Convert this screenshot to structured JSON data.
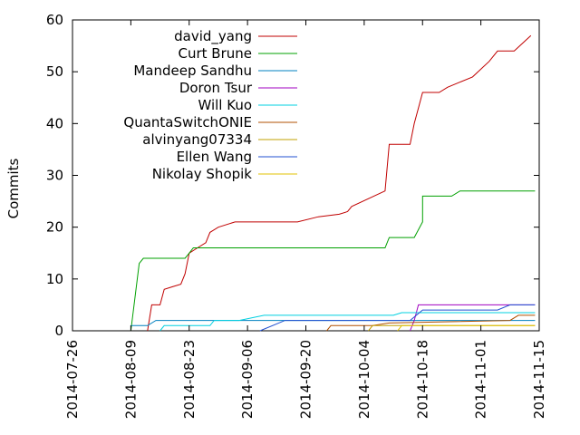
{
  "chart_data": {
    "type": "line",
    "title": "",
    "xlabel": "",
    "ylabel": "Commits",
    "ylim": [
      0,
      60
    ],
    "yticks": [
      0,
      10,
      20,
      30,
      40,
      50,
      60
    ],
    "xlim": [
      "2014-07-26",
      "2014-11-15"
    ],
    "xticks": [
      "2014-07-26",
      "2014-08-09",
      "2014-08-23",
      "2014-09-06",
      "2014-09-20",
      "2014-10-04",
      "2014-10-18",
      "2014-11-01",
      "2014-11-15"
    ],
    "grid": false,
    "legend_position": "top-left",
    "series": [
      {
        "name": "david_yang",
        "color": "#c00000",
        "points": [
          [
            "2014-08-13",
            0
          ],
          [
            "2014-08-14",
            5
          ],
          [
            "2014-08-16",
            5
          ],
          [
            "2014-08-17",
            8
          ],
          [
            "2014-08-19",
            8.5
          ],
          [
            "2014-08-21",
            9
          ],
          [
            "2014-08-22",
            11
          ],
          [
            "2014-08-23",
            15
          ],
          [
            "2014-08-25",
            16
          ],
          [
            "2014-08-27",
            17
          ],
          [
            "2014-08-28",
            19
          ],
          [
            "2014-08-30",
            20
          ],
          [
            "2014-09-03",
            21
          ],
          [
            "2014-09-12",
            21
          ],
          [
            "2014-09-18",
            21
          ],
          [
            "2014-09-23",
            22
          ],
          [
            "2014-09-28",
            22.5
          ],
          [
            "2014-09-30",
            23
          ],
          [
            "2014-10-01",
            24
          ],
          [
            "2014-10-09",
            27
          ],
          [
            "2014-10-10",
            36
          ],
          [
            "2014-10-15",
            36
          ],
          [
            "2014-10-16",
            40
          ],
          [
            "2014-10-17",
            43
          ],
          [
            "2014-10-18",
            46
          ],
          [
            "2014-10-22",
            46
          ],
          [
            "2014-10-24",
            47
          ],
          [
            "2014-10-27",
            48
          ],
          [
            "2014-10-30",
            49
          ],
          [
            "2014-11-03",
            52
          ],
          [
            "2014-11-05",
            54
          ],
          [
            "2014-11-09",
            54
          ],
          [
            "2014-11-13",
            57
          ]
        ]
      },
      {
        "name": "Curt Brune",
        "color": "#00a000",
        "points": [
          [
            "2014-08-09",
            0
          ],
          [
            "2014-08-11",
            13
          ],
          [
            "2014-08-12",
            14
          ],
          [
            "2014-08-22",
            14
          ],
          [
            "2014-08-23",
            15
          ],
          [
            "2014-08-24",
            16
          ],
          [
            "2014-09-05",
            16
          ],
          [
            "2014-09-20",
            16
          ],
          [
            "2014-10-09",
            16
          ],
          [
            "2014-10-10",
            18
          ],
          [
            "2014-10-16",
            18
          ],
          [
            "2014-10-18",
            21
          ],
          [
            "2014-10-18",
            26
          ],
          [
            "2014-10-25",
            26
          ],
          [
            "2014-10-27",
            27
          ],
          [
            "2014-11-14",
            27
          ]
        ]
      },
      {
        "name": "Mandeep Sandhu",
        "color": "#0080c0",
        "points": [
          [
            "2014-08-09",
            1
          ],
          [
            "2014-08-13",
            1
          ],
          [
            "2014-08-15",
            2
          ],
          [
            "2014-09-03",
            2
          ],
          [
            "2014-09-14",
            2
          ],
          [
            "2014-09-15",
            2
          ],
          [
            "2014-11-14",
            2
          ]
        ]
      },
      {
        "name": "Doron Tsur",
        "color": "#a000c0",
        "points": [
          [
            "2014-10-15",
            0
          ],
          [
            "2014-10-16",
            2
          ],
          [
            "2014-10-17",
            5
          ],
          [
            "2014-11-14",
            5
          ]
        ]
      },
      {
        "name": "Will Kuo",
        "color": "#00d0e0",
        "points": [
          [
            "2014-08-16",
            0
          ],
          [
            "2014-08-17",
            1
          ],
          [
            "2014-08-28",
            1
          ],
          [
            "2014-08-29",
            2
          ],
          [
            "2014-09-04",
            2
          ],
          [
            "2014-09-10",
            3
          ],
          [
            "2014-10-11",
            3
          ],
          [
            "2014-10-13",
            3.5
          ],
          [
            "2014-11-14",
            3.5
          ]
        ]
      },
      {
        "name": "QuantaSwitchONIE",
        "color": "#b05000",
        "points": [
          [
            "2014-09-25",
            0
          ],
          [
            "2014-09-26",
            1
          ],
          [
            "2014-10-06",
            1
          ],
          [
            "2014-10-10",
            1.5
          ],
          [
            "2014-11-08",
            2
          ],
          [
            "2014-11-10",
            3
          ],
          [
            "2014-11-14",
            3
          ]
        ]
      },
      {
        "name": "alvinyang07334",
        "color": "#c0a000",
        "points": [
          [
            "2014-10-05",
            0
          ],
          [
            "2014-10-06",
            1
          ],
          [
            "2014-11-14",
            1
          ]
        ]
      },
      {
        "name": "Ellen Wang",
        "color": "#2050d0",
        "points": [
          [
            "2014-09-09",
            0
          ],
          [
            "2014-09-15",
            2
          ],
          [
            "2014-10-15",
            2
          ],
          [
            "2014-10-18",
            4
          ],
          [
            "2014-11-05",
            4
          ],
          [
            "2014-11-08",
            5
          ],
          [
            "2014-11-14",
            5
          ]
        ]
      },
      {
        "name": "Nikolay Shopik",
        "color": "#e0c000",
        "points": [
          [
            "2014-10-12",
            0
          ],
          [
            "2014-10-13",
            1
          ],
          [
            "2014-11-14",
            1
          ]
        ]
      }
    ]
  }
}
